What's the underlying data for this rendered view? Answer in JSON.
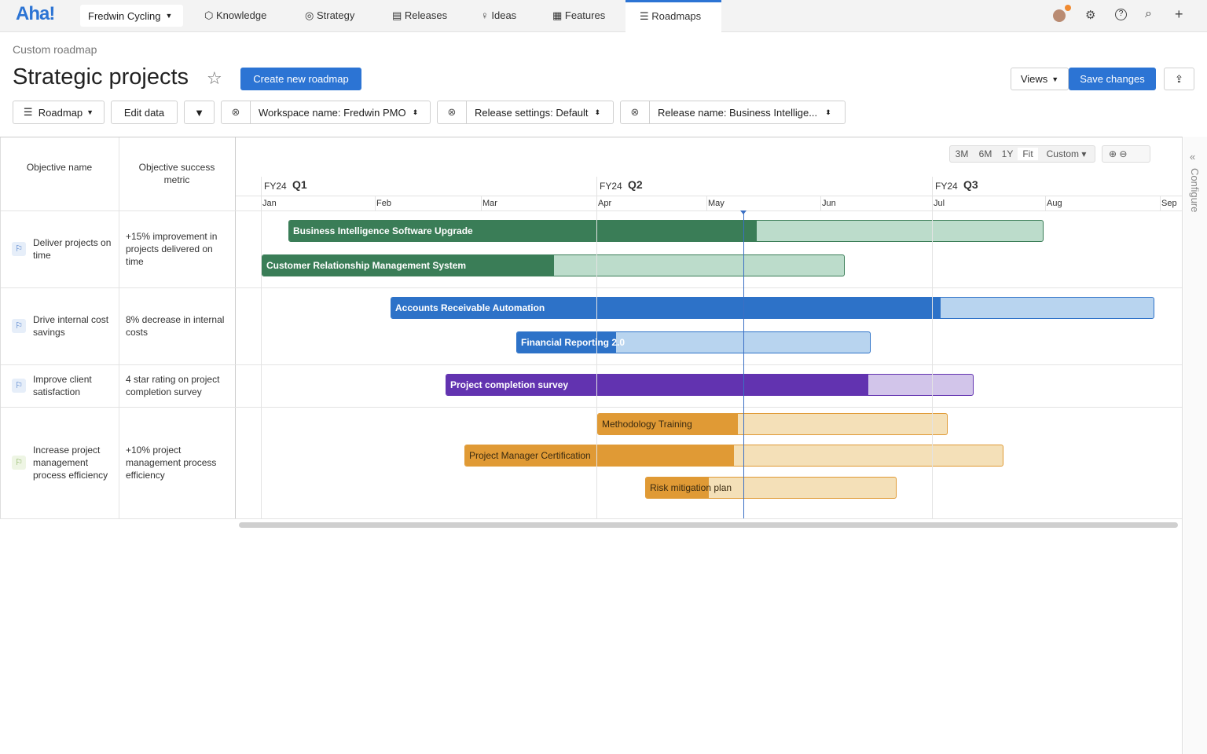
{
  "nav": {
    "logo": "Aha!",
    "workspace": "Fredwin Cycling",
    "tabs": [
      "Knowledge",
      "Strategy",
      "Releases",
      "Ideas",
      "Features",
      "Roadmaps"
    ]
  },
  "header": {
    "breadcrumb": "Custom roadmap",
    "title": "Strategic projects",
    "create_button": "Create new roadmap",
    "views_button": "Views",
    "save_button": "Save changes"
  },
  "toolbar": {
    "roadmap": "Roadmap",
    "edit_data": "Edit data",
    "filters": [
      "Workspace name: Fredwin PMO",
      "Release settings: Default",
      "Release name: Business Intellige..."
    ]
  },
  "table": {
    "columns": [
      "Objective name",
      "Objective success metric"
    ],
    "rows": [
      {
        "name": "Deliver projects on time",
        "metric": "+15% improvement in projects delivered on time",
        "bars": [
          "Business Intelligence Software Upgrade",
          "Customer Relationship Management System"
        ]
      },
      {
        "name": "Drive internal cost savings",
        "metric": "8% decrease in internal costs",
        "bars": [
          "Accounts Receivable Automation",
          "Financial Reporting 2.0"
        ]
      },
      {
        "name": "Improve client satisfaction",
        "metric": "4 star rating on project completion survey",
        "bars": [
          "Project completion survey"
        ]
      },
      {
        "name": "Increase project management process efficiency",
        "metric": "+10% project management process efficiency",
        "bars": [
          "Methodology Training",
          "Project Manager Certification",
          "Risk mitigation plan"
        ]
      }
    ]
  },
  "timeline": {
    "zoom": [
      "3M",
      "6M",
      "1Y",
      "Fit",
      "Custom"
    ],
    "quarters": [
      {
        "year": "FY24",
        "quarter": "Q1"
      },
      {
        "year": "FY24",
        "quarter": "Q2"
      },
      {
        "year": "FY24",
        "quarter": "Q3"
      }
    ],
    "months": [
      "Jan",
      "Feb",
      "Mar",
      "Apr",
      "May",
      "Jun",
      "Jul",
      "Aug",
      "Sep"
    ]
  },
  "side_panel": "Configure"
}
